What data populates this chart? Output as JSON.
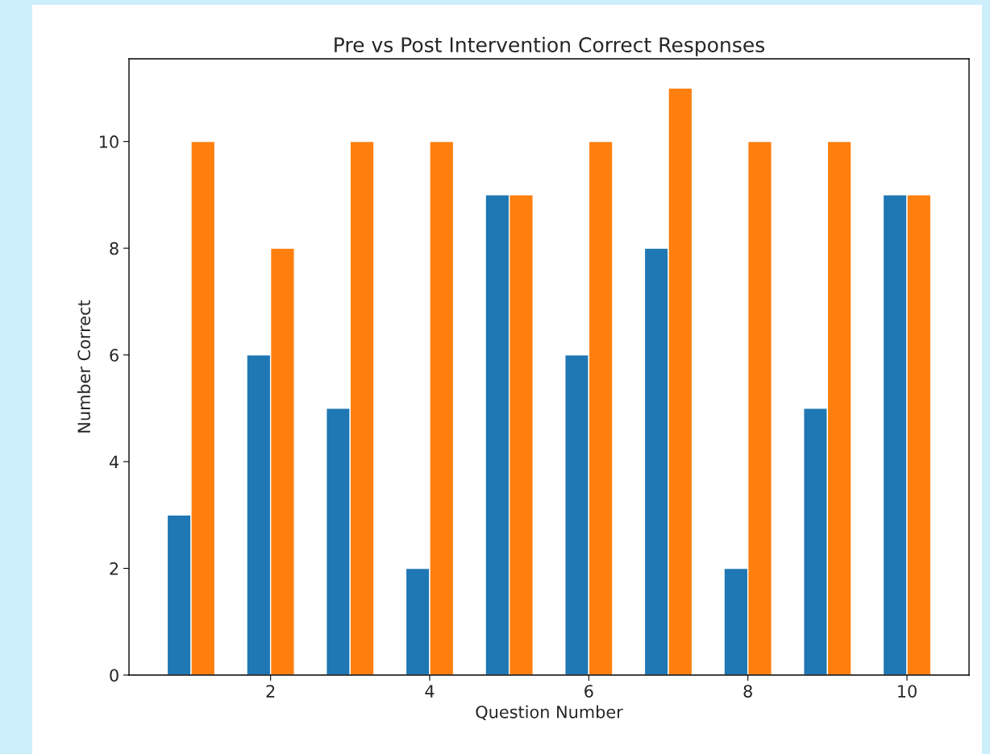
{
  "chart_data": {
    "type": "bar",
    "title": "Pre vs Post Intervention Correct Responses",
    "xlabel": "Question Number",
    "ylabel": "Number Correct",
    "x": [
      1,
      2,
      3,
      4,
      5,
      6,
      7,
      8,
      9,
      10
    ],
    "series": [
      {
        "color": "#1f77b4",
        "values": [
          3,
          6,
          5,
          2,
          9,
          6,
          8,
          2,
          5,
          9
        ]
      },
      {
        "color": "#ff7f0e",
        "values": [
          10,
          8,
          10,
          10,
          9,
          10,
          11,
          10,
          10,
          9
        ]
      }
    ],
    "xlim": [
      0.22,
      10.78
    ],
    "ylim": [
      0,
      11.55
    ],
    "xticks": [
      2,
      4,
      6,
      8,
      10
    ],
    "yticks": [
      0,
      2,
      4,
      6,
      8,
      10
    ],
    "grid": false,
    "legend": false
  }
}
